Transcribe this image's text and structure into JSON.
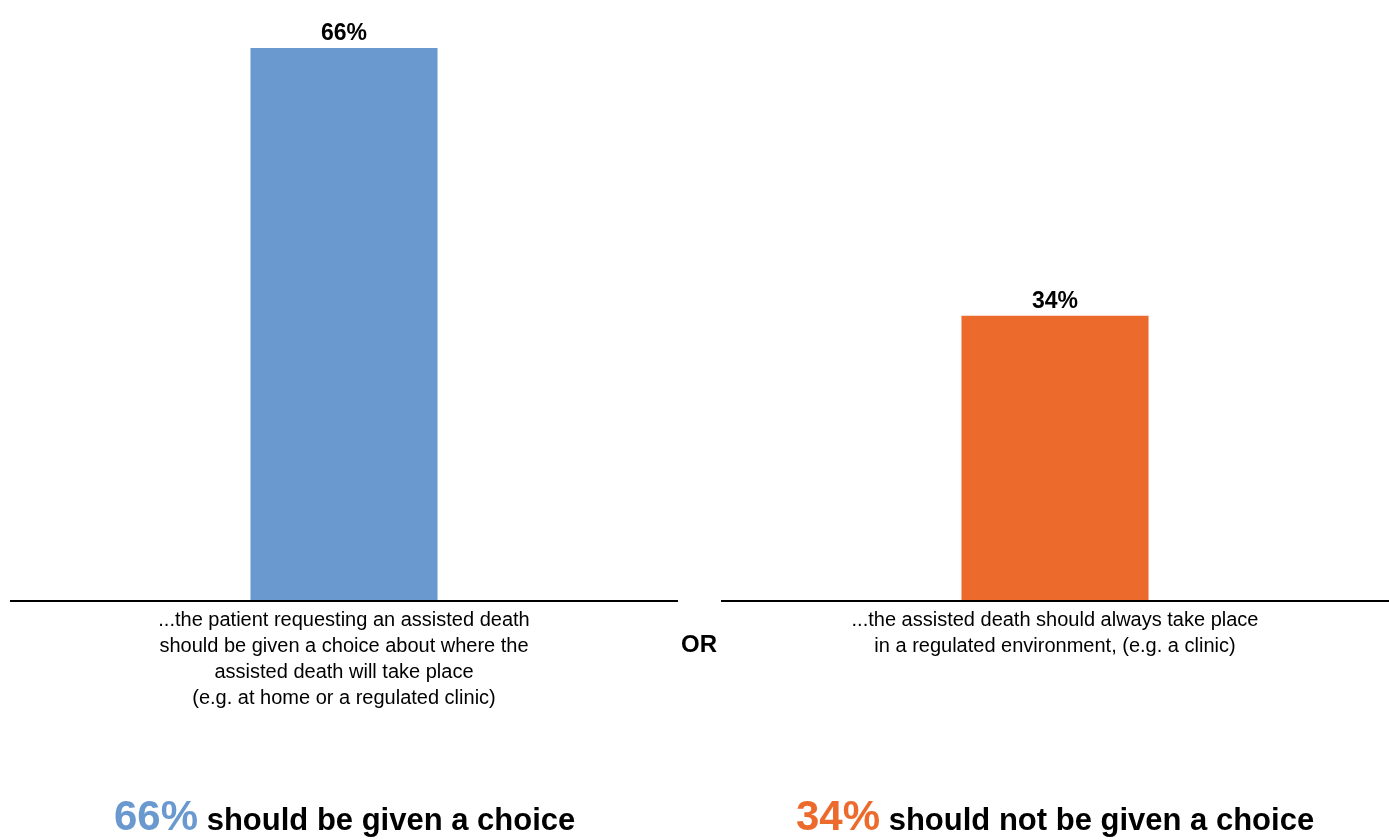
{
  "chart_data": {
    "type": "bar",
    "categories": [
      "...the patient requesting an assisted death\nshould be given a choice about where the\nassisted death will take place\n(e.g. at home or a regulated clinic)",
      "...the assisted death should always take place\nin a regulated environment, (e.g. a clinic)"
    ],
    "values": [
      66,
      34
    ],
    "colors": [
      "#6a99d0",
      "#ec6a2c"
    ],
    "value_labels": [
      "66%",
      "34%"
    ],
    "annotations": [
      "OR",
      "66% should be given a choice",
      "34% should not be given a choice"
    ]
  }
}
